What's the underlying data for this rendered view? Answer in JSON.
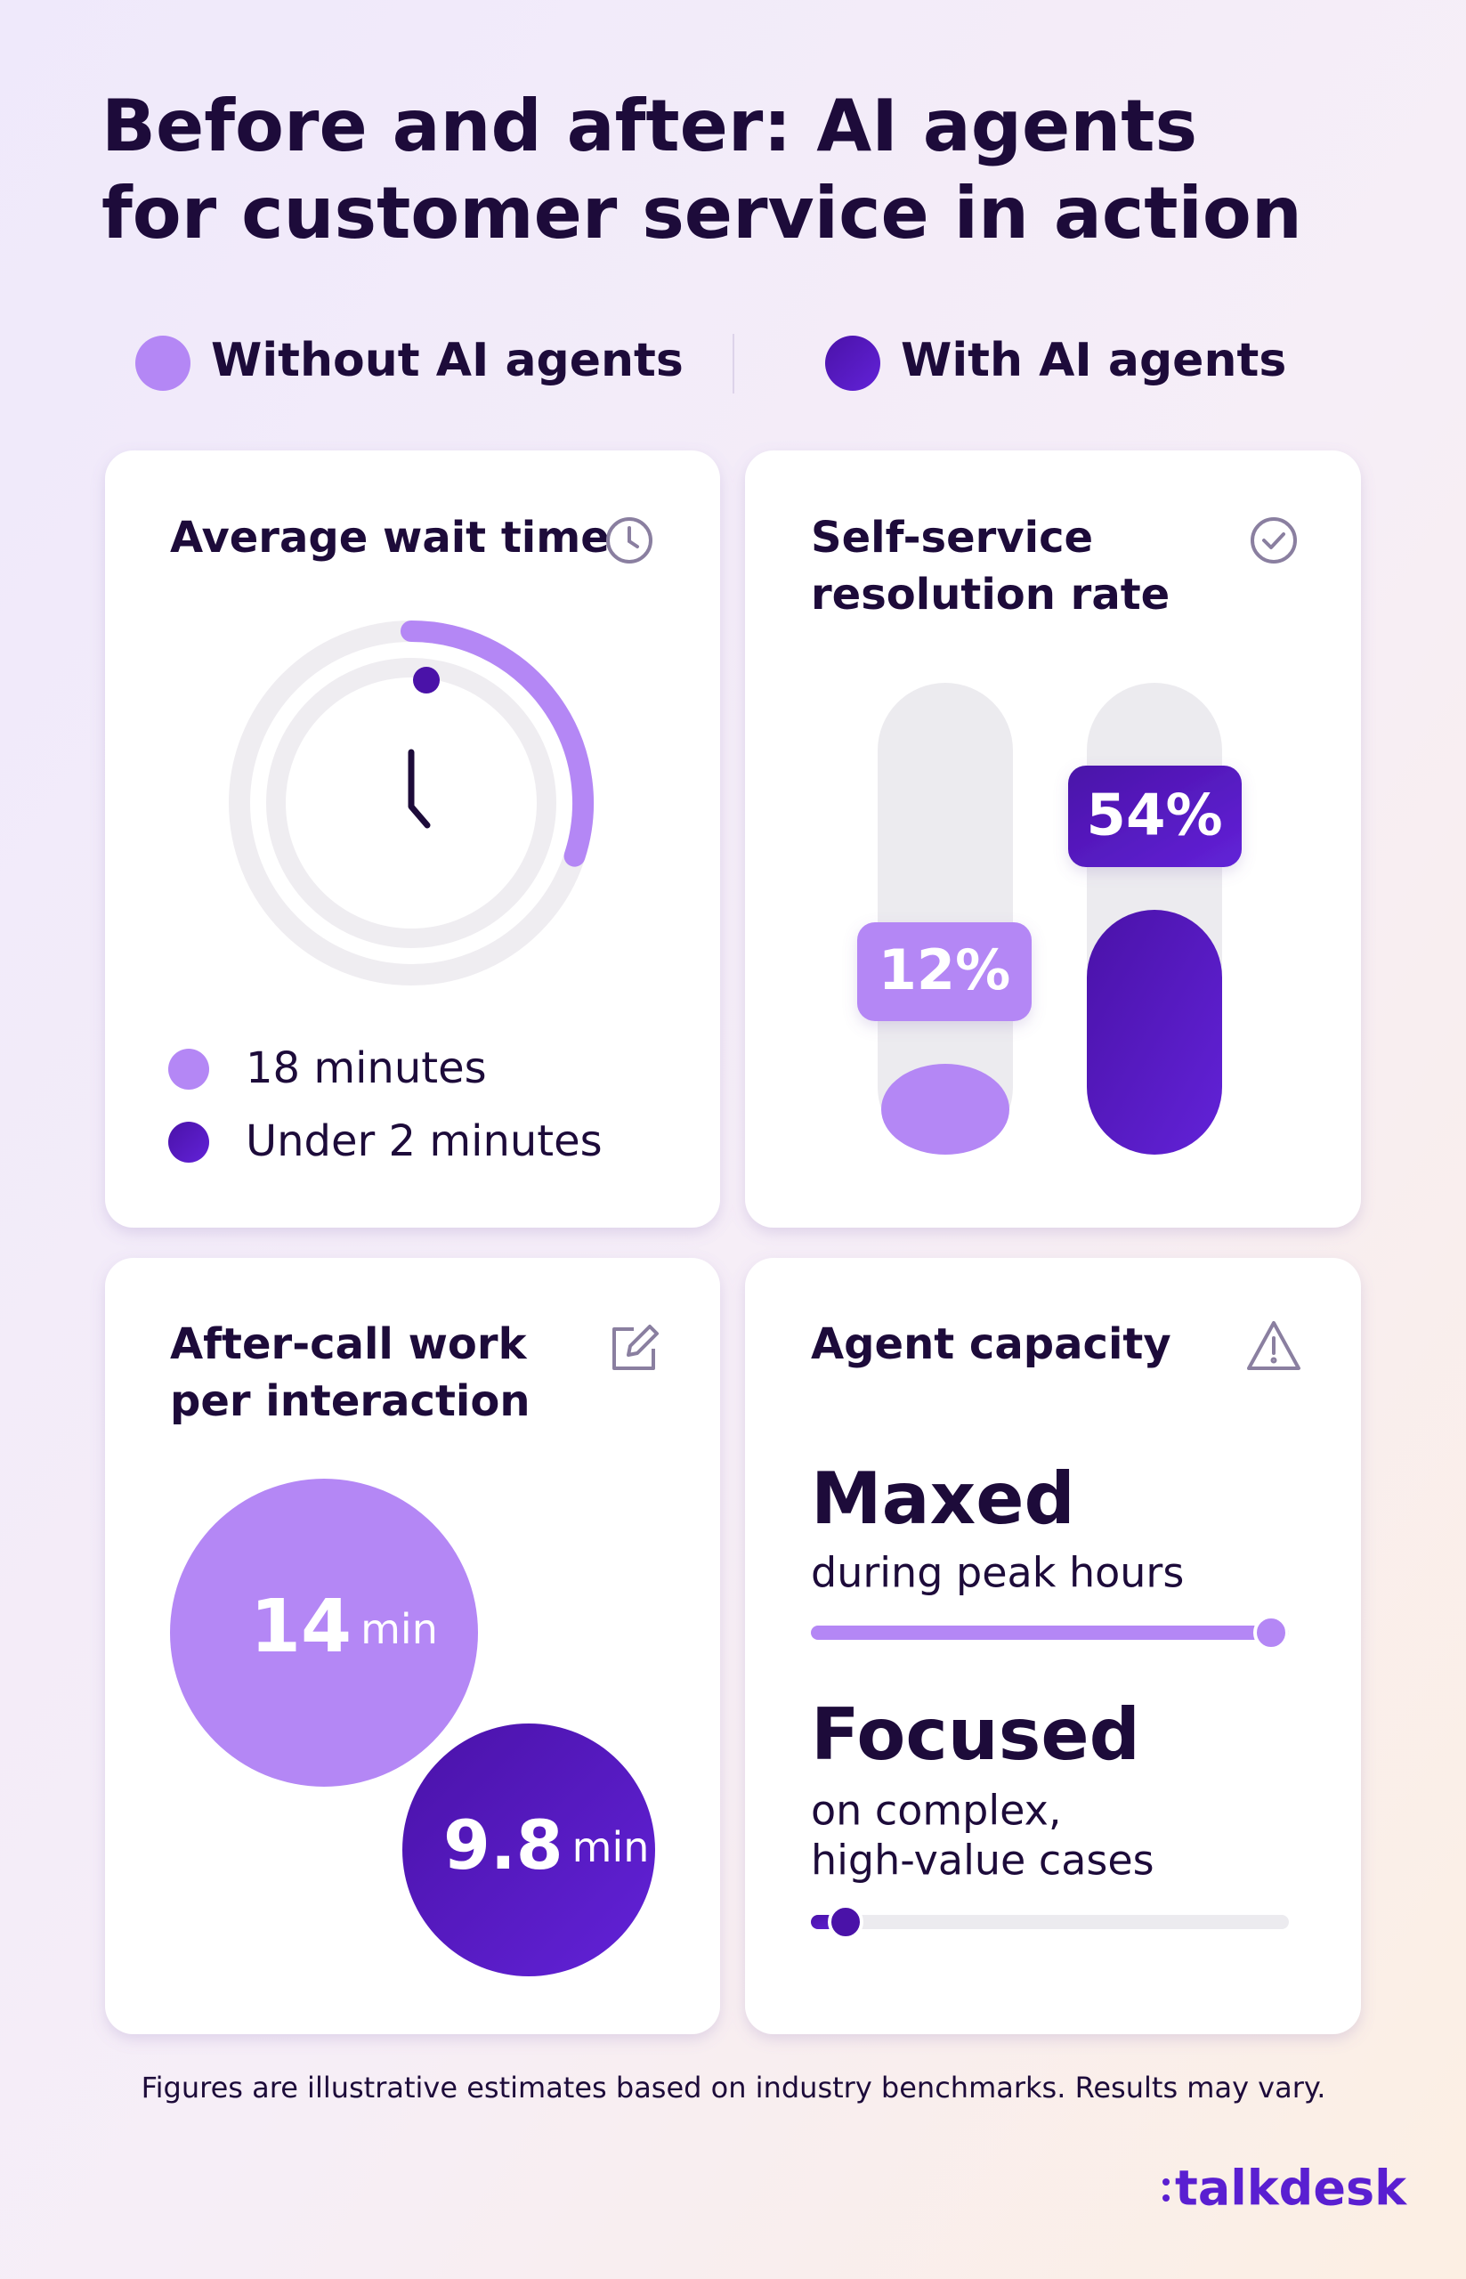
{
  "title": [
    "Before and after: AI agents",
    "for customer service in action"
  ],
  "legend": [
    "Without AI agents",
    "With AI agents"
  ],
  "cards": [
    {
      "title": [
        "Average wait time"
      ],
      "items": [
        "18 minutes",
        "Under 2 minutes"
      ]
    },
    {
      "title": [
        "Self-service",
        "resolution rate"
      ],
      "bars": [
        "12%",
        "54%"
      ]
    },
    {
      "title": [
        "After-call work",
        "per interaction"
      ],
      "bubbles": [
        {
          "value": "14",
          "unit": "min"
        },
        {
          "value": "9.8",
          "unit": "min"
        }
      ]
    },
    {
      "title": [
        "Agent capacity"
      ],
      "states": [
        {
          "heading": "Maxed",
          "text": [
            "during peak hours"
          ]
        },
        {
          "heading": "Focused",
          "text": [
            "on complex,",
            "high-value cases"
          ]
        }
      ]
    }
  ],
  "footnote": "Figures are illustrative estimates based on industry benchmarks. Results may vary.",
  "logo": "talkdesk"
}
